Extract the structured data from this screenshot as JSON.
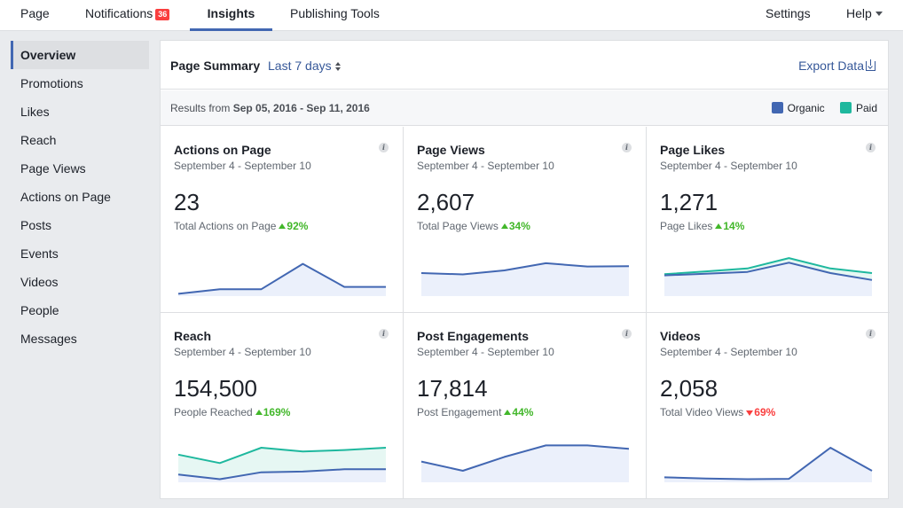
{
  "nav": {
    "tabs": [
      {
        "label": "Page"
      },
      {
        "label": "Notifications",
        "badge": "36"
      },
      {
        "label": "Insights"
      },
      {
        "label": "Publishing Tools"
      }
    ],
    "settings_label": "Settings",
    "help_label": "Help"
  },
  "sidebar": {
    "items": [
      {
        "label": "Overview"
      },
      {
        "label": "Promotions"
      },
      {
        "label": "Likes"
      },
      {
        "label": "Reach"
      },
      {
        "label": "Page Views"
      },
      {
        "label": "Actions on Page"
      },
      {
        "label": "Posts"
      },
      {
        "label": "Events"
      },
      {
        "label": "Videos"
      },
      {
        "label": "People"
      },
      {
        "label": "Messages"
      }
    ]
  },
  "summary": {
    "title": "Page Summary",
    "range_label": "Last 7 days",
    "export_label": "Export Data",
    "results_prefix": "Results from",
    "results_range": "Sep 05, 2016 - Sep 11, 2016",
    "legend": [
      {
        "name": "Organic",
        "color": "#4267b2"
      },
      {
        "name": "Paid",
        "color": "#1eb89e"
      }
    ]
  },
  "cards": [
    {
      "title": "Actions on Page",
      "date": "September 4 - September 10",
      "value": "23",
      "sub": "Total Actions on Page",
      "change": "92%",
      "direction": "up",
      "organic": [
        1,
        3,
        3,
        14,
        4,
        4
      ],
      "paid": null,
      "ylim": [
        0,
        20
      ]
    },
    {
      "title": "Page Views",
      "date": "September 4 - September 10",
      "value": "2,607",
      "sub": "Total Page Views",
      "change": "34%",
      "direction": "up",
      "organic": [
        350,
        330,
        390,
        500,
        450,
        455
      ],
      "paid": null,
      "ylim": [
        0,
        700
      ]
    },
    {
      "title": "Page Likes",
      "date": "September 4 - September 10",
      "value": "1,271",
      "sub": "Page Likes",
      "change": "14%",
      "direction": "up",
      "organic": [
        180,
        195,
        210,
        290,
        200,
        140
      ],
      "paid": [
        190,
        215,
        240,
        330,
        240,
        200
      ],
      "ylim": [
        0,
        400
      ]
    },
    {
      "title": "Reach",
      "date": "September 4 - September 10",
      "value": "154,500",
      "sub": "People Reached",
      "change": "169%",
      "direction": "up",
      "organic": [
        10000,
        4000,
        13000,
        14000,
        17000,
        17000
      ],
      "paid": [
        36000,
        25000,
        45000,
        40000,
        42000,
        45000
      ],
      "ylim": [
        0,
        60000
      ]
    },
    {
      "title": "Post Engagements",
      "date": "September 4 - September 10",
      "value": "17,814",
      "sub": "Post Engagement",
      "change": "44%",
      "direction": "up",
      "organic": [
        1800,
        1000,
        2200,
        3200,
        3200,
        2900
      ],
      "paid": null,
      "ylim": [
        0,
        4000
      ]
    },
    {
      "title": "Videos",
      "date": "September 4 - September 10",
      "value": "2,058",
      "sub": "Total Video Views",
      "change": "69%",
      "direction": "down",
      "organic": [
        130,
        100,
        80,
        90,
        900,
        300
      ],
      "paid": null,
      "ylim": [
        0,
        1200
      ]
    }
  ]
}
